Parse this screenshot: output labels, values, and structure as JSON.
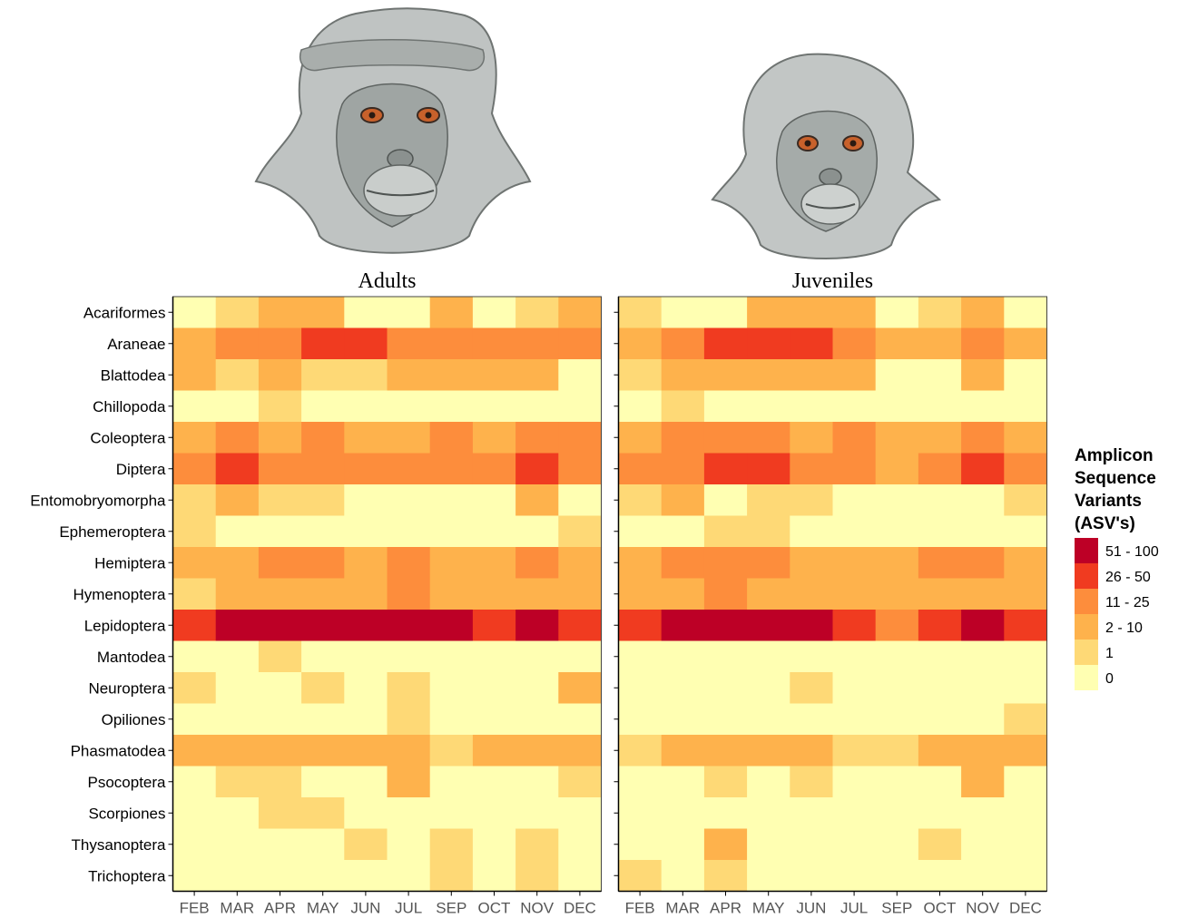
{
  "chart_data": {
    "type": "heatmap",
    "row_labels": [
      "Acariformes",
      "Araneae",
      "Blattodea",
      "Chillopoda",
      "Coleoptera",
      "Diptera",
      "Entomobryomorpha",
      "Ephemeroptera",
      "Hemiptera",
      "Hymenoptera",
      "Lepidoptera",
      "Mantodea",
      "Neuroptera",
      "Opiliones",
      "Phasmatodea",
      "Psocoptera",
      "Scorpiones",
      "Thysanoptera",
      "Trichoptera"
    ],
    "col_labels": [
      "FEB",
      "MAR",
      "APR",
      "MAY",
      "JUN",
      "JUL",
      "SEP",
      "OCT",
      "NOV",
      "DEC"
    ],
    "legend": {
      "title_lines": [
        "Amplicon",
        "Sequence",
        "Variants",
        "(ASV's)"
      ],
      "placement": "right",
      "classes": [
        {
          "label": "51 - 100",
          "color": "#bd0026"
        },
        {
          "label": "26 - 50",
          "color": "#f03b20"
        },
        {
          "label": "11 - 25",
          "color": "#fd8d3c"
        },
        {
          "label": "2 - 10",
          "color": "#feb24c"
        },
        {
          "label": "1",
          "color": "#fed976"
        },
        {
          "label": "0",
          "color": "#ffffb2"
        }
      ]
    },
    "panels": [
      {
        "title": "Adults",
        "illustration": "adult-monkey-face",
        "class_index_grid": [
          [
            5,
            4,
            3,
            3,
            5,
            5,
            3,
            5,
            4,
            3
          ],
          [
            3,
            2,
            2,
            1,
            1,
            2,
            2,
            2,
            2,
            2
          ],
          [
            3,
            4,
            3,
            4,
            4,
            3,
            3,
            3,
            3,
            5
          ],
          [
            5,
            5,
            4,
            5,
            5,
            5,
            5,
            5,
            5,
            5
          ],
          [
            3,
            2,
            3,
            2,
            3,
            3,
            2,
            3,
            2,
            2
          ],
          [
            2,
            1,
            2,
            2,
            2,
            2,
            2,
            2,
            1,
            2
          ],
          [
            4,
            3,
            4,
            4,
            5,
            5,
            5,
            5,
            3,
            5
          ],
          [
            4,
            5,
            5,
            5,
            5,
            5,
            5,
            5,
            5,
            4
          ],
          [
            3,
            3,
            2,
            2,
            3,
            2,
            3,
            3,
            2,
            3
          ],
          [
            4,
            3,
            3,
            3,
            3,
            2,
            3,
            3,
            3,
            3
          ],
          [
            1,
            0,
            0,
            0,
            0,
            0,
            0,
            1,
            0,
            1
          ],
          [
            5,
            5,
            4,
            5,
            5,
            5,
            5,
            5,
            5,
            5
          ],
          [
            4,
            5,
            5,
            4,
            5,
            4,
            5,
            5,
            5,
            3
          ],
          [
            5,
            5,
            5,
            5,
            5,
            4,
            5,
            5,
            5,
            5
          ],
          [
            3,
            3,
            3,
            3,
            3,
            3,
            4,
            3,
            3,
            3
          ],
          [
            5,
            4,
            4,
            5,
            5,
            3,
            5,
            5,
            5,
            4
          ],
          [
            5,
            5,
            4,
            4,
            5,
            5,
            5,
            5,
            5,
            5
          ],
          [
            5,
            5,
            5,
            5,
            4,
            5,
            4,
            5,
            4,
            5
          ],
          [
            5,
            5,
            5,
            5,
            5,
            5,
            4,
            5,
            4,
            5
          ]
        ]
      },
      {
        "title": "Juveniles",
        "illustration": "juvenile-monkey-face",
        "class_index_grid": [
          [
            4,
            5,
            5,
            3,
            3,
            3,
            5,
            4,
            3,
            5
          ],
          [
            3,
            2,
            1,
            1,
            1,
            2,
            3,
            3,
            2,
            3
          ],
          [
            4,
            3,
            3,
            3,
            3,
            3,
            5,
            5,
            3,
            5
          ],
          [
            5,
            4,
            5,
            5,
            5,
            5,
            5,
            5,
            5,
            5
          ],
          [
            3,
            2,
            2,
            2,
            3,
            2,
            3,
            3,
            2,
            3
          ],
          [
            2,
            2,
            1,
            1,
            2,
            2,
            3,
            2,
            1,
            2
          ],
          [
            4,
            3,
            5,
            4,
            4,
            5,
            5,
            5,
            5,
            4
          ],
          [
            5,
            5,
            4,
            4,
            5,
            5,
            5,
            5,
            5,
            5
          ],
          [
            3,
            2,
            2,
            2,
            3,
            3,
            3,
            2,
            2,
            3
          ],
          [
            3,
            3,
            2,
            3,
            3,
            3,
            3,
            3,
            3,
            3
          ],
          [
            1,
            0,
            0,
            0,
            0,
            1,
            2,
            1,
            0,
            1
          ],
          [
            5,
            5,
            5,
            5,
            5,
            5,
            5,
            5,
            5,
            5
          ],
          [
            5,
            5,
            5,
            5,
            4,
            5,
            5,
            5,
            5,
            5
          ],
          [
            5,
            5,
            5,
            5,
            5,
            5,
            5,
            5,
            5,
            4
          ],
          [
            4,
            3,
            3,
            3,
            3,
            4,
            4,
            3,
            3,
            3
          ],
          [
            5,
            5,
            4,
            5,
            4,
            5,
            5,
            5,
            3,
            5
          ],
          [
            5,
            5,
            5,
            5,
            5,
            5,
            5,
            5,
            5,
            5
          ],
          [
            5,
            5,
            3,
            5,
            5,
            5,
            5,
            4,
            5,
            5
          ],
          [
            4,
            5,
            4,
            5,
            5,
            5,
            5,
            5,
            5,
            5
          ]
        ]
      }
    ]
  }
}
